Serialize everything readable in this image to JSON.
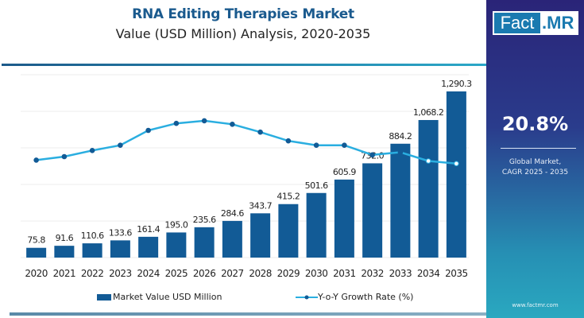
{
  "header": {
    "title": "RNA Editing Therapies Market",
    "subtitle": "Value (USD Million) Analysis, 2020-2035"
  },
  "brand": {
    "logo_left": "Fact",
    "logo_right": ".MR",
    "url": "www.factmr.com"
  },
  "kpi": {
    "value": "20.8%",
    "label_line1": "Global Market,",
    "label_line2": "CAGR 2025 - 2035"
  },
  "colors": {
    "bar": "#125b96",
    "line": "#2aaee0",
    "marker": "#125b96",
    "title": "#1a5a8e"
  },
  "chart_data": {
    "type": "bar",
    "title": "RNA Editing Therapies Market",
    "subtitle": "Value (USD Million) Analysis, 2020-2035",
    "xlabel": "",
    "ylabel": "",
    "categories": [
      "2020",
      "2021",
      "2022",
      "2023",
      "2024",
      "2025",
      "2026",
      "2027",
      "2028",
      "2029",
      "2030",
      "2031",
      "2032",
      "2033",
      "2034",
      "2035"
    ],
    "series": [
      {
        "name": "Market Value USD Million",
        "type": "bar",
        "values": [
          75.8,
          91.6,
          110.6,
          133.6,
          161.4,
          195.0,
          235.6,
          284.6,
          343.7,
          415.2,
          501.6,
          605.9,
          732.0,
          884.2,
          1068.2,
          1290.3
        ],
        "labels": [
          "75.8",
          "91.6",
          "110.6",
          "133.6",
          "161.4",
          "195.0",
          "235.6",
          "284.6",
          "343.7",
          "415.2",
          "501.6",
          "605.9",
          "732.0",
          "884.2",
          "1,068.2",
          "1,290.3"
        ]
      },
      {
        "name": "Y-o-Y Growth Rate (%)",
        "type": "line",
        "axis": "secondary",
        "values_relative": [
          0.26,
          0.3,
          0.37,
          0.43,
          0.6,
          0.68,
          0.71,
          0.67,
          0.58,
          0.48,
          0.43,
          0.43,
          0.32,
          0.35,
          0.25,
          0.22
        ]
      }
    ],
    "ylim": [
      0,
      1400
    ],
    "grid": true,
    "legend": "bottom"
  },
  "legend": {
    "bar_label": "Market Value USD Million",
    "line_label": "Y-o-Y Growth Rate (%)"
  }
}
